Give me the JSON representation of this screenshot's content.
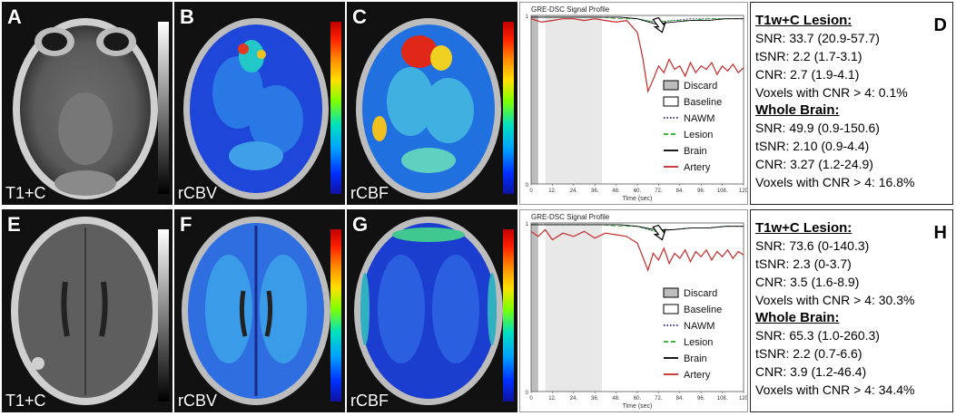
{
  "figure": {
    "top": {
      "panels": [
        {
          "letter": "A",
          "label": "T1+C"
        },
        {
          "letter": "B",
          "label": "rCBV"
        },
        {
          "letter": "C",
          "label": "rCBF"
        }
      ],
      "stats_letter": "D",
      "lesion_heading": "T1w+C Lesion:",
      "lesion": [
        "SNR: 33.7 (20.9-57.7)",
        "tSNR: 2.2 (1.7-3.1)",
        "CNR: 2.7 (1.9-4.1)",
        "Voxels with CNR > 4: 0.1%"
      ],
      "brain_heading": "Whole Brain:",
      "brain": [
        "SNR: 49.9 (0.9-150.6)",
        "tSNR: 2.10 (0.9-4.4)",
        "CNR: 3.27 (1.2-24.9)",
        "Voxels with CNR > 4: 16.8%"
      ]
    },
    "bottom": {
      "panels": [
        {
          "letter": "E",
          "label": "T1+C"
        },
        {
          "letter": "F",
          "label": "rCBV"
        },
        {
          "letter": "G",
          "label": "rCBF"
        }
      ],
      "stats_letter": "H",
      "lesion_heading": "T1w+C Lesion:",
      "lesion": [
        "SNR: 73.6 (0-140.3)",
        "tSNR: 2.3 (0-3.7)",
        "CNR: 3.5 (1.6-8.9)",
        "Voxels with CNR > 4: 30.3%"
      ],
      "brain_heading": "Whole Brain:",
      "brain": [
        "SNR: 65.3 (1.0-260.3)",
        "tSNR: 2.2 (0.7-6.6)",
        "CNR: 3.9 (1.2-46.4)",
        "Voxels with CNR > 4: 34.4%"
      ]
    }
  },
  "chart_data": [
    {
      "type": "line",
      "title": "GRE-DSC Signal Profile",
      "xlabel": "Time (sec)",
      "ylabel": "",
      "x_ticks": [
        "0",
        "12.",
        "24.",
        "36.",
        "48.",
        "60.",
        "72.",
        "84.",
        "96.",
        "108.",
        "120"
      ],
      "y_ticks": [
        "1",
        "0"
      ],
      "xlim": [
        0,
        120
      ],
      "ylim": [
        0,
        1
      ],
      "legend_position": "center-right",
      "shaded": [
        {
          "name": "Discard",
          "range": [
            0,
            4
          ],
          "color": "#bdbdbd"
        },
        {
          "name": "Baseline",
          "range": [
            8,
            40
          ],
          "color": "#e8e8e8"
        }
      ],
      "series": [
        {
          "name": "NAWM",
          "color": "#1a237e",
          "style": "dotted",
          "x": [
            0,
            10,
            20,
            30,
            40,
            50,
            60,
            70,
            80,
            90,
            100,
            110,
            120
          ],
          "y": [
            0.99,
            0.99,
            0.99,
            0.99,
            0.99,
            0.99,
            0.98,
            0.96,
            0.97,
            0.98,
            0.98,
            0.98,
            0.98
          ]
        },
        {
          "name": "Lesion",
          "color": "#22aa22",
          "style": "dashed",
          "x": [
            0,
            10,
            20,
            30,
            40,
            50,
            60,
            70,
            80,
            90,
            100,
            110,
            120
          ],
          "y": [
            0.99,
            0.99,
            0.99,
            0.99,
            0.99,
            0.98,
            0.98,
            0.96,
            0.97,
            0.97,
            0.98,
            0.98,
            0.98
          ]
        },
        {
          "name": "Brain",
          "color": "#000000",
          "style": "solid",
          "x": [
            0,
            10,
            20,
            30,
            40,
            50,
            60,
            70,
            80,
            90,
            100,
            110,
            120
          ],
          "y": [
            0.99,
            0.99,
            0.99,
            0.99,
            0.99,
            0.99,
            0.98,
            0.95,
            0.96,
            0.97,
            0.97,
            0.98,
            0.98
          ]
        },
        {
          "name": "Artery",
          "color": "#c62828",
          "style": "solid",
          "x": [
            0,
            6,
            12,
            18,
            24,
            30,
            36,
            42,
            48,
            54,
            60,
            63,
            66,
            69,
            72,
            75,
            78,
            81,
            84,
            87,
            90,
            93,
            96,
            99,
            102,
            105,
            108,
            111,
            114,
            117,
            120
          ],
          "y": [
            0.98,
            0.96,
            0.97,
            0.98,
            0.98,
            0.97,
            0.98,
            0.97,
            0.96,
            0.97,
            0.9,
            0.75,
            0.55,
            0.62,
            0.7,
            0.66,
            0.74,
            0.68,
            0.7,
            0.64,
            0.72,
            0.66,
            0.7,
            0.68,
            0.72,
            0.65,
            0.7,
            0.67,
            0.71,
            0.66,
            0.69
          ]
        }
      ]
    },
    {
      "type": "line",
      "title": "GRE-DSC Signal Profile",
      "xlabel": "Time (sec)",
      "ylabel": "",
      "x_ticks": [
        "0",
        "12.",
        "24.",
        "36.",
        "48.",
        "60.",
        "72.",
        "84.",
        "96.",
        "108.",
        "120"
      ],
      "y_ticks": [
        "1",
        "0"
      ],
      "xlim": [
        0,
        120
      ],
      "ylim": [
        0,
        1
      ],
      "legend_position": "center-right",
      "shaded": [
        {
          "name": "Discard",
          "range": [
            0,
            4
          ],
          "color": "#bdbdbd"
        },
        {
          "name": "Baseline",
          "range": [
            8,
            40
          ],
          "color": "#e8e8e8"
        }
      ],
      "series": [
        {
          "name": "NAWM",
          "color": "#1a237e",
          "style": "dotted",
          "x": [
            0,
            10,
            20,
            30,
            40,
            50,
            60,
            70,
            80,
            90,
            100,
            110,
            120
          ],
          "y": [
            0.99,
            0.99,
            0.99,
            0.99,
            0.99,
            0.99,
            0.98,
            0.95,
            0.96,
            0.97,
            0.97,
            0.98,
            0.98
          ]
        },
        {
          "name": "Lesion",
          "color": "#22aa22",
          "style": "dashed",
          "x": [
            0,
            10,
            20,
            30,
            40,
            50,
            60,
            70,
            80,
            90,
            100,
            110,
            120
          ],
          "y": [
            0.99,
            0.99,
            0.99,
            0.99,
            0.99,
            0.98,
            0.98,
            0.95,
            0.96,
            0.97,
            0.97,
            0.98,
            0.98
          ]
        },
        {
          "name": "Brain",
          "color": "#000000",
          "style": "solid",
          "x": [
            0,
            10,
            20,
            30,
            40,
            50,
            60,
            70,
            80,
            90,
            100,
            110,
            120
          ],
          "y": [
            0.99,
            0.99,
            0.99,
            0.99,
            0.99,
            0.99,
            0.98,
            0.96,
            0.96,
            0.97,
            0.97,
            0.98,
            0.98
          ]
        },
        {
          "name": "Artery",
          "color": "#c62828",
          "style": "solid",
          "x": [
            0,
            4,
            8,
            12,
            18,
            24,
            30,
            36,
            42,
            48,
            54,
            60,
            63,
            66,
            69,
            72,
            75,
            78,
            81,
            84,
            87,
            90,
            93,
            96,
            99,
            102,
            105,
            108,
            111,
            114,
            117,
            120
          ],
          "y": [
            0.95,
            0.92,
            0.96,
            0.9,
            0.94,
            0.92,
            0.95,
            0.91,
            0.94,
            0.93,
            0.92,
            0.88,
            0.8,
            0.72,
            0.82,
            0.78,
            0.85,
            0.76,
            0.82,
            0.79,
            0.84,
            0.77,
            0.83,
            0.8,
            0.84,
            0.78,
            0.83,
            0.8,
            0.84,
            0.79,
            0.83,
            0.81
          ]
        }
      ]
    }
  ]
}
